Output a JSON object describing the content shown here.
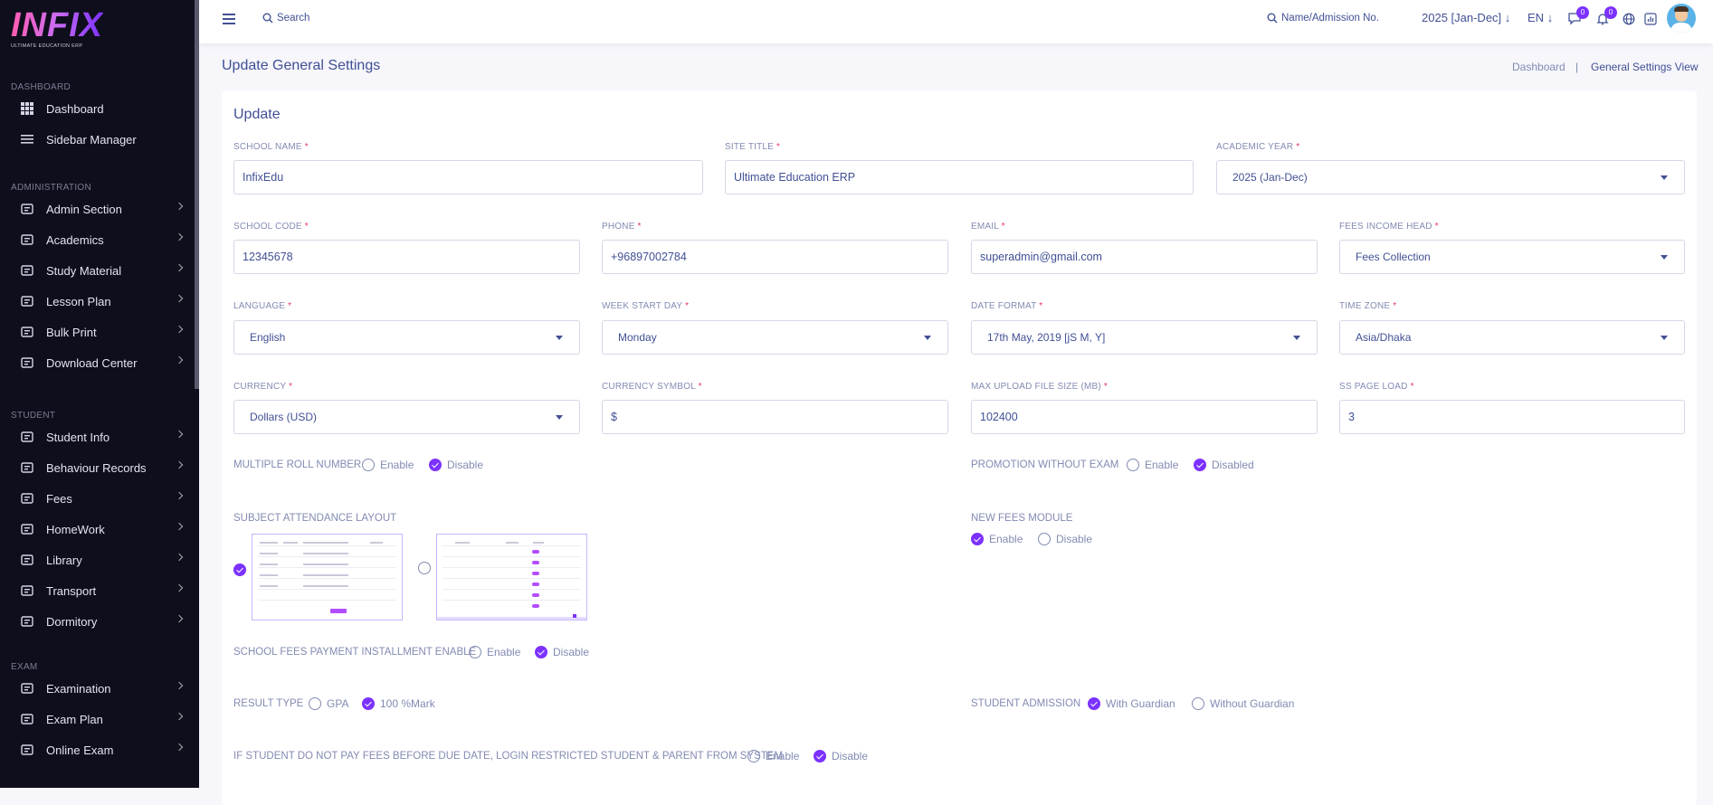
{
  "logo": {
    "brand": "INFIX",
    "tagline": "ULTIMATE EDUCATION ERP"
  },
  "sidebar": {
    "sections": [
      {
        "title": "DASHBOARD",
        "items": [
          {
            "label": "Dashboard",
            "icon": "grid-icon",
            "chevron": false
          },
          {
            "label": "Sidebar Manager",
            "icon": "list-icon",
            "chevron": false
          }
        ]
      },
      {
        "title": "ADMINISTRATION",
        "items": [
          {
            "label": "Admin Section",
            "icon": "admin-icon",
            "chevron": true
          },
          {
            "label": "Academics",
            "icon": "graduation-cap-icon",
            "chevron": true
          },
          {
            "label": "Study Material",
            "icon": "download-icon",
            "chevron": true
          },
          {
            "label": "Lesson Plan",
            "icon": "lesson-icon",
            "chevron": true
          },
          {
            "label": "Bulk Print",
            "icon": "printer-icon",
            "chevron": true
          },
          {
            "label": "Download Center",
            "icon": "download-icon",
            "chevron": true
          }
        ]
      },
      {
        "title": "STUDENT",
        "items": [
          {
            "label": "Student Info",
            "icon": "user-icon",
            "chevron": true
          },
          {
            "label": "Behaviour Records",
            "icon": "records-icon",
            "chevron": true
          },
          {
            "label": "Fees",
            "icon": "fees-icon",
            "chevron": true
          },
          {
            "label": "HomeWork",
            "icon": "book-icon",
            "chevron": true
          },
          {
            "label": "Library",
            "icon": "library-icon",
            "chevron": true
          },
          {
            "label": "Transport",
            "icon": "bus-icon",
            "chevron": true
          },
          {
            "label": "Dormitory",
            "icon": "bed-icon",
            "chevron": true
          }
        ]
      },
      {
        "title": "EXAM",
        "items": [
          {
            "label": "Examination",
            "icon": "map-icon",
            "chevron": true
          },
          {
            "label": "Exam Plan",
            "icon": "clipboard-icon",
            "chevron": true
          },
          {
            "label": "Online Exam",
            "icon": "globe-icon",
            "chevron": true
          }
        ]
      }
    ]
  },
  "topbar": {
    "search_label": "Search",
    "student_search_label": "Name/Admission No.",
    "academic_year": "2025 [Jan-Dec]",
    "language": "EN",
    "messages_count": "0",
    "notifications_count": "0"
  },
  "page": {
    "title": "Update General Settings",
    "breadcrumb": [
      "Dashboard",
      "General Settings View"
    ],
    "card_title": "Update"
  },
  "form": {
    "school_name": {
      "label": "SCHOOL NAME",
      "value": "InfixEdu"
    },
    "site_title": {
      "label": "SITE TITLE",
      "value": "Ultimate Education ERP"
    },
    "academic_year": {
      "label": "ACADEMIC YEAR",
      "value": "2025 (Jan-Dec)"
    },
    "school_code": {
      "label": "SCHOOL CODE",
      "value": "12345678"
    },
    "phone": {
      "label": "PHONE",
      "value": "+96897002784"
    },
    "email": {
      "label": "EMAIL",
      "value": "superadmin@gmail.com"
    },
    "fees_income_head": {
      "label": "FEES INCOME HEAD",
      "value": "Fees Collection"
    },
    "language": {
      "label": "LANGUAGE",
      "value": "English"
    },
    "week_start_day": {
      "label": "WEEK START DAY",
      "value": "Monday"
    },
    "date_format": {
      "label": "DATE FORMAT",
      "value": "17th May, 2019 [jS M, Y]"
    },
    "time_zone": {
      "label": "TIME ZONE",
      "value": "Asia/Dhaka"
    },
    "currency": {
      "label": "CURRENCY",
      "value": "Dollars (USD)"
    },
    "currency_symbol": {
      "label": "CURRENCY SYMBOL",
      "value": "$"
    },
    "max_upload": {
      "label": "MAX UPLOAD FILE SIZE (MB)",
      "value": "102400"
    },
    "ss_page_load": {
      "label": "SS PAGE LOAD",
      "value": "3"
    }
  },
  "radios": {
    "multiple_roll": {
      "label": "MULTIPLE ROLL NUMBER",
      "options": [
        "Enable",
        "Disable"
      ],
      "selected": "Disable"
    },
    "promotion": {
      "label": "PROMOTION WITHOUT EXAM",
      "options": [
        "Enable",
        "Disabled"
      ],
      "selected": "Disabled"
    },
    "subject_attendance": {
      "label": "SUBJECT ATTENDANCE LAYOUT",
      "selected": "layout-1"
    },
    "new_fees": {
      "label": "NEW FEES MODULE",
      "options": [
        "Enable",
        "Disable"
      ],
      "selected": "Enable"
    },
    "installment": {
      "label": "SCHOOL FEES PAYMENT INSTALLMENT ENABLE",
      "options": [
        "Enable",
        "Disable"
      ],
      "selected": "Disable"
    },
    "result_type": {
      "label": "RESULT TYPE",
      "options": [
        "GPA",
        "100 %Mark"
      ],
      "selected": "100 %Mark"
    },
    "student_admission": {
      "label": "STUDENT ADMISSION",
      "options": [
        "With Guardian",
        "Without Guardian"
      ],
      "selected": "With Guardian"
    },
    "restrict_login": {
      "label": "IF STUDENT DO NOT PAY FEES BEFORE DUE DATE, LOGIN RESTRICTED STUDENT & PARENT FROM SYSTEM",
      "options": [
        "Enable",
        "Disable"
      ],
      "selected": "Disable"
    }
  },
  "colors": {
    "accent": "#7c32ff",
    "sidebar_bg": "#0f0e1d",
    "text": "#415094",
    "muted": "#828bb2",
    "required": "#e0336a"
  }
}
